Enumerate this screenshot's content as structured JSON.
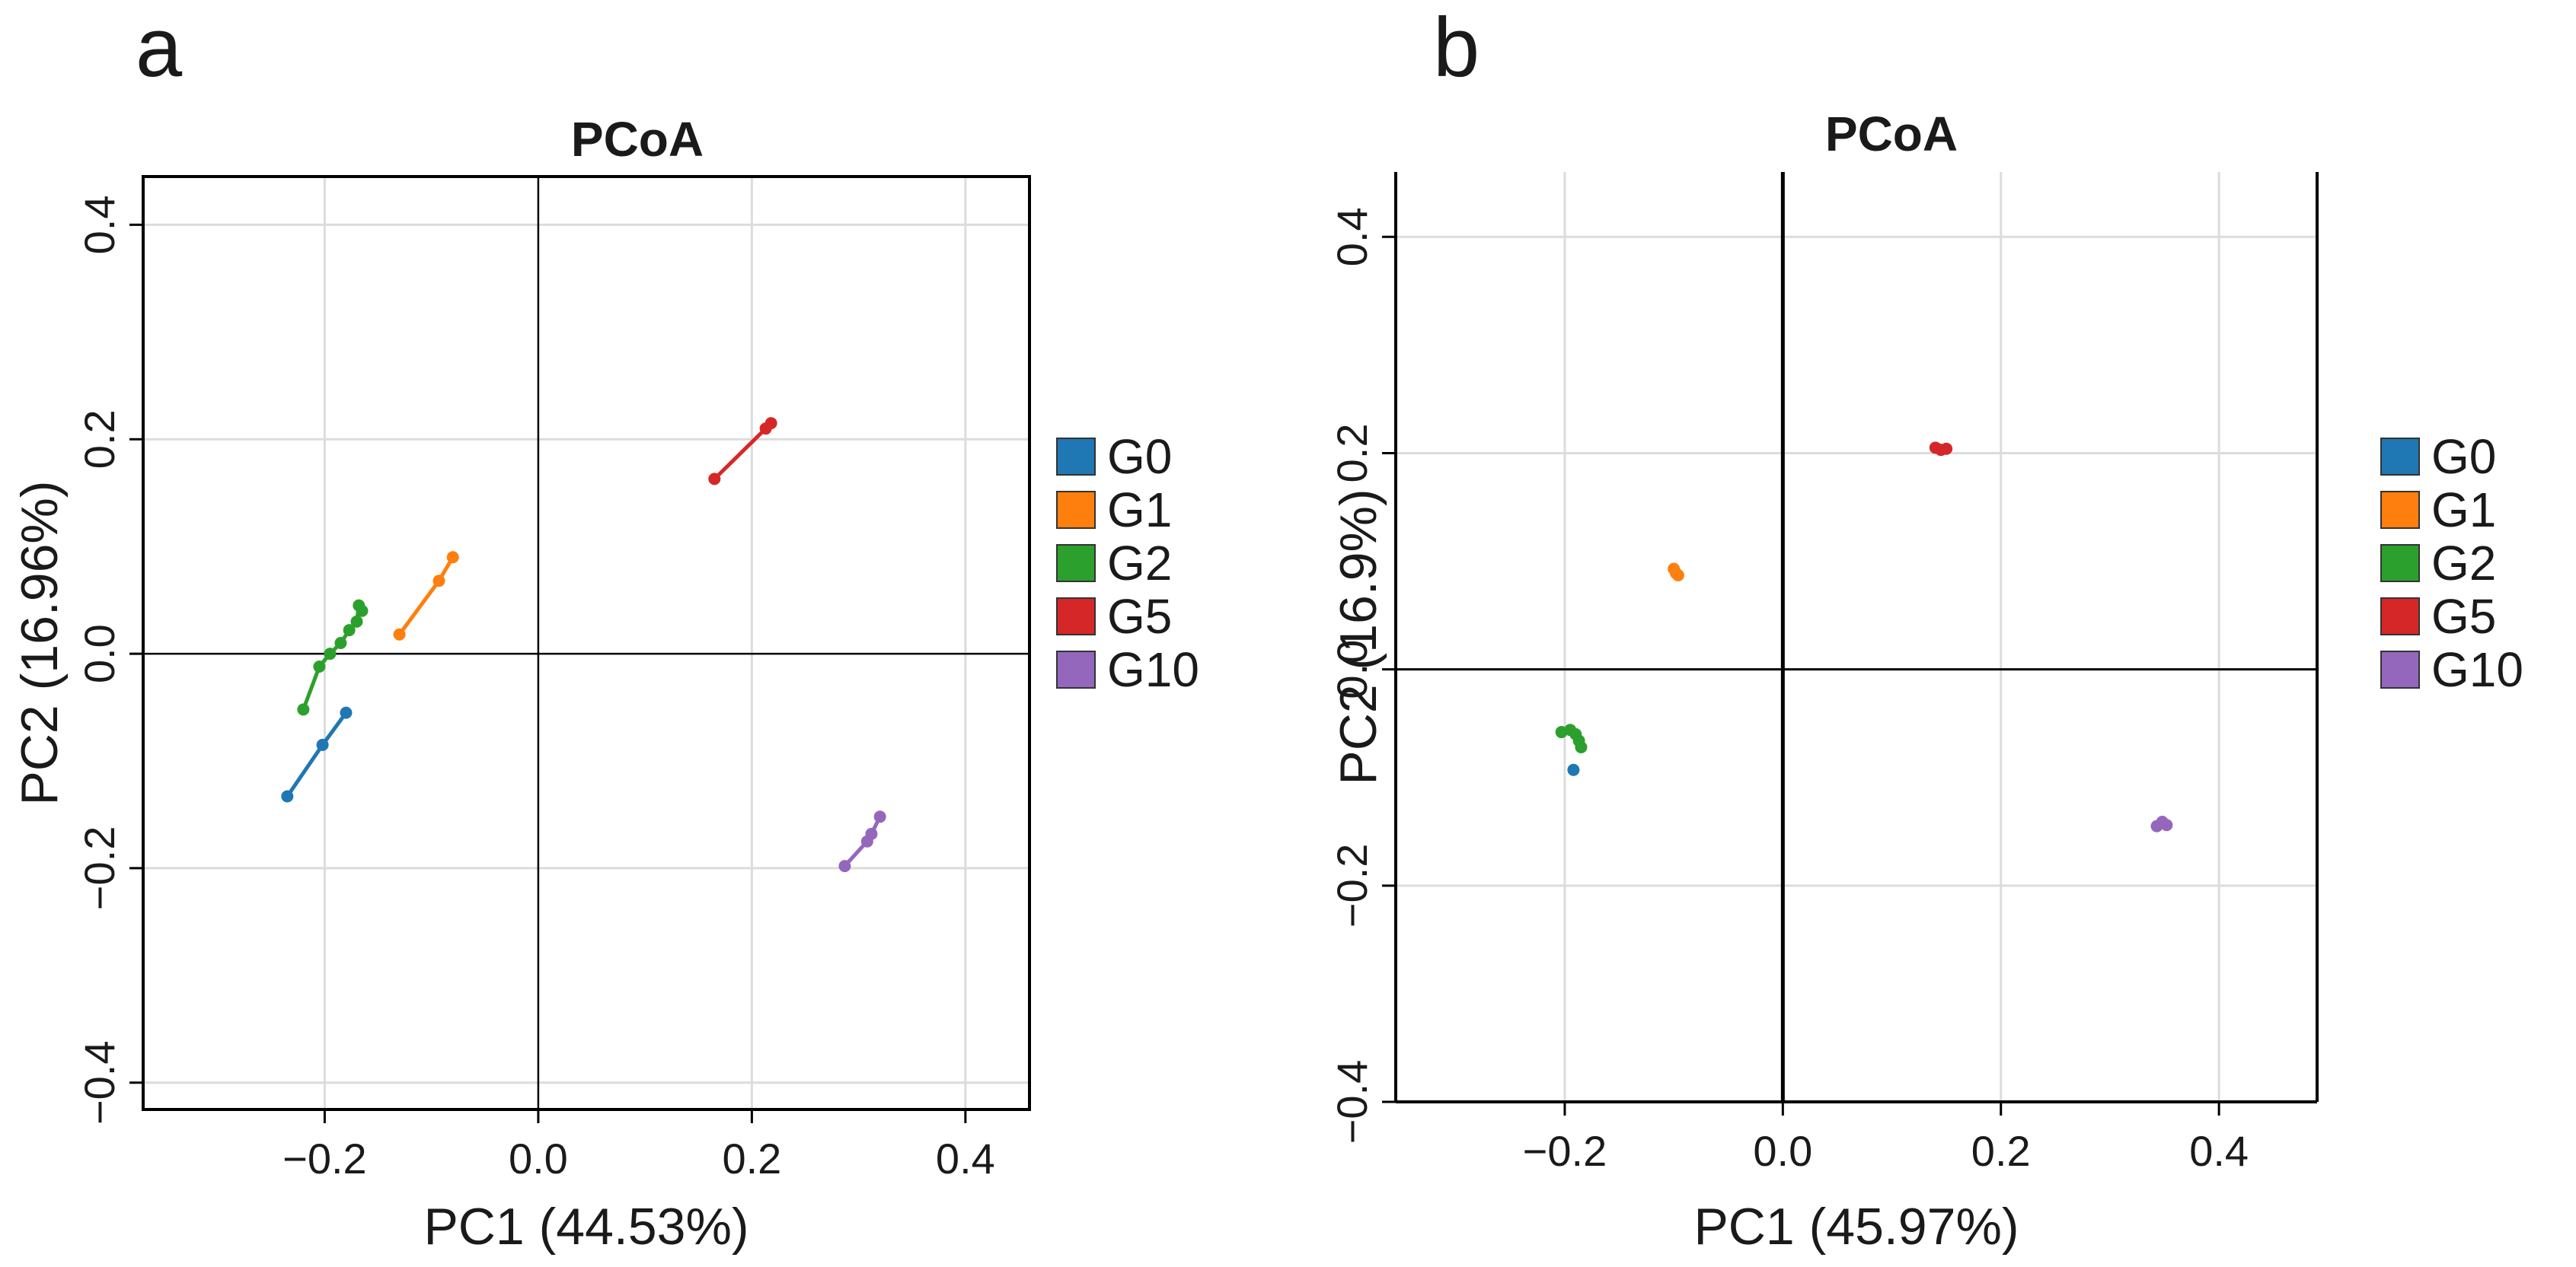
{
  "colors": {
    "G0": "#1f77b4",
    "G1": "#ff7f0e",
    "G2": "#2ca02c",
    "G5": "#d62728",
    "G10": "#9467bd",
    "grid": "#dcdcdc",
    "axis": "#000000"
  },
  "chart_data": [
    {
      "panel_label": "a",
      "type": "scatter",
      "title": "PCoA",
      "xlabel": "PC1  (44.53%)",
      "ylabel": "PC2  (16.96%)",
      "xlim": [
        -0.37,
        0.46
      ],
      "ylim": [
        -0.425,
        0.445
      ],
      "xticks": [
        -0.2,
        0.0,
        0.2,
        0.4
      ],
      "xtick_labels": [
        "−0.2",
        "0.0",
        "0.2",
        "0.4"
      ],
      "yticks": [
        -0.4,
        -0.2,
        0.0,
        0.2,
        0.4
      ],
      "ytick_labels": [
        "−0.4",
        "−0.2",
        "0.0",
        "0.2",
        "0.4"
      ],
      "grid": true,
      "zero_lines": true,
      "legend": {
        "position": "right",
        "entries": [
          "G0",
          "G1",
          "G2",
          "G5",
          "G10"
        ]
      },
      "series": [
        {
          "name": "G0",
          "x": [
            -0.235,
            -0.202,
            -0.18
          ],
          "y": [
            -0.133,
            -0.085,
            -0.055
          ]
        },
        {
          "name": "G1",
          "x": [
            -0.13,
            -0.093,
            -0.08
          ],
          "y": [
            0.018,
            0.068,
            0.09
          ]
        },
        {
          "name": "G2",
          "x": [
            -0.22,
            -0.205,
            -0.195,
            -0.185,
            -0.177,
            -0.17,
            -0.168,
            -0.165
          ],
          "y": [
            -0.052,
            -0.012,
            0.0,
            0.01,
            0.022,
            0.03,
            0.045,
            0.04
          ]
        },
        {
          "name": "G5",
          "x": [
            0.165,
            0.213,
            0.218
          ],
          "y": [
            0.163,
            0.21,
            0.215
          ]
        },
        {
          "name": "G10",
          "x": [
            0.287,
            0.308,
            0.312,
            0.32
          ],
          "y": [
            -0.198,
            -0.175,
            -0.168,
            -0.152
          ]
        }
      ]
    },
    {
      "panel_label": "b",
      "type": "scatter",
      "title": "PCoA",
      "xlabel": "PC1  (45.97%)",
      "ylabel": "PC2  (16.9%)",
      "xlim": [
        -0.355,
        0.49
      ],
      "ylim": [
        -0.4,
        0.46
      ],
      "xticks": [
        -0.2,
        0.0,
        0.2,
        0.4
      ],
      "xtick_labels": [
        "−0.2",
        "0.0",
        "0.2",
        "0.4"
      ],
      "yticks": [
        -0.4,
        -0.2,
        0.0,
        0.2,
        0.4
      ],
      "ytick_labels": [
        "−0.4",
        "−0.2",
        "0.0",
        "0.2",
        "0.4"
      ],
      "grid": true,
      "zero_lines": true,
      "legend": {
        "position": "right",
        "entries": [
          "G0",
          "G1",
          "G2",
          "G5",
          "G10"
        ]
      },
      "series": [
        {
          "name": "G0",
          "x": [
            -0.192
          ],
          "y": [
            -0.093
          ]
        },
        {
          "name": "G1",
          "x": [
            -0.1,
            -0.098,
            -0.096
          ],
          "y": [
            0.093,
            0.089,
            0.087
          ]
        },
        {
          "name": "G2",
          "x": [
            -0.203,
            -0.195,
            -0.19,
            -0.187,
            -0.185
          ],
          "y": [
            -0.058,
            -0.056,
            -0.06,
            -0.066,
            -0.072
          ]
        },
        {
          "name": "G5",
          "x": [
            0.14,
            0.145,
            0.15
          ],
          "y": [
            0.205,
            0.203,
            0.204
          ]
        },
        {
          "name": "G10",
          "x": [
            0.343,
            0.348,
            0.352
          ],
          "y": [
            -0.145,
            -0.141,
            -0.144
          ]
        }
      ]
    }
  ]
}
